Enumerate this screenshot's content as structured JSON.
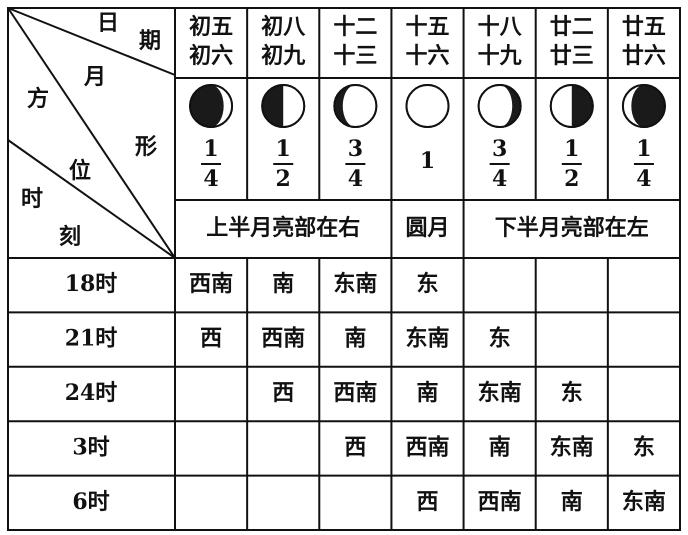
{
  "corner": {
    "date": [
      "日",
      "期"
    ],
    "shape": [
      "月",
      "形"
    ],
    "position": [
      "方",
      "位"
    ],
    "time": [
      "时",
      "刻"
    ]
  },
  "dates": [
    [
      "初五",
      "初六"
    ],
    [
      "初八",
      "初九"
    ],
    [
      "十二",
      "十三"
    ],
    [
      "十五",
      "十六"
    ],
    [
      "十八",
      "十九"
    ],
    [
      "廿二",
      "廿三"
    ],
    [
      "廿五",
      "廿六"
    ]
  ],
  "fractions": [
    [
      "1",
      "4"
    ],
    [
      "1",
      "2"
    ],
    [
      "3",
      "4"
    ],
    [
      "1"
    ],
    [
      "3",
      "4"
    ],
    [
      "1",
      "2"
    ],
    [
      "1",
      "4"
    ]
  ],
  "phases": [
    {
      "label": "上半月亮部在右",
      "span": 3
    },
    {
      "label": "圆月",
      "span": 1
    },
    {
      "label": "下半月亮部在左",
      "span": 3
    }
  ],
  "rows": [
    {
      "time": "18时",
      "cells": [
        "西南",
        "南",
        "东南",
        "东",
        null,
        null,
        null
      ]
    },
    {
      "time": "21时",
      "cells": [
        "西",
        "西南",
        "南",
        "东南",
        "东",
        null,
        null
      ]
    },
    {
      "time": "24时",
      "cells": [
        null,
        "西",
        "西南",
        "南",
        "东南",
        "东",
        null
      ]
    },
    {
      "time": "3时",
      "cells": [
        null,
        null,
        "西",
        "西南",
        "南",
        "东南",
        "东"
      ]
    },
    {
      "time": "6时",
      "cells": [
        null,
        null,
        null,
        "西",
        "西南",
        "南",
        "东南"
      ]
    }
  ]
}
